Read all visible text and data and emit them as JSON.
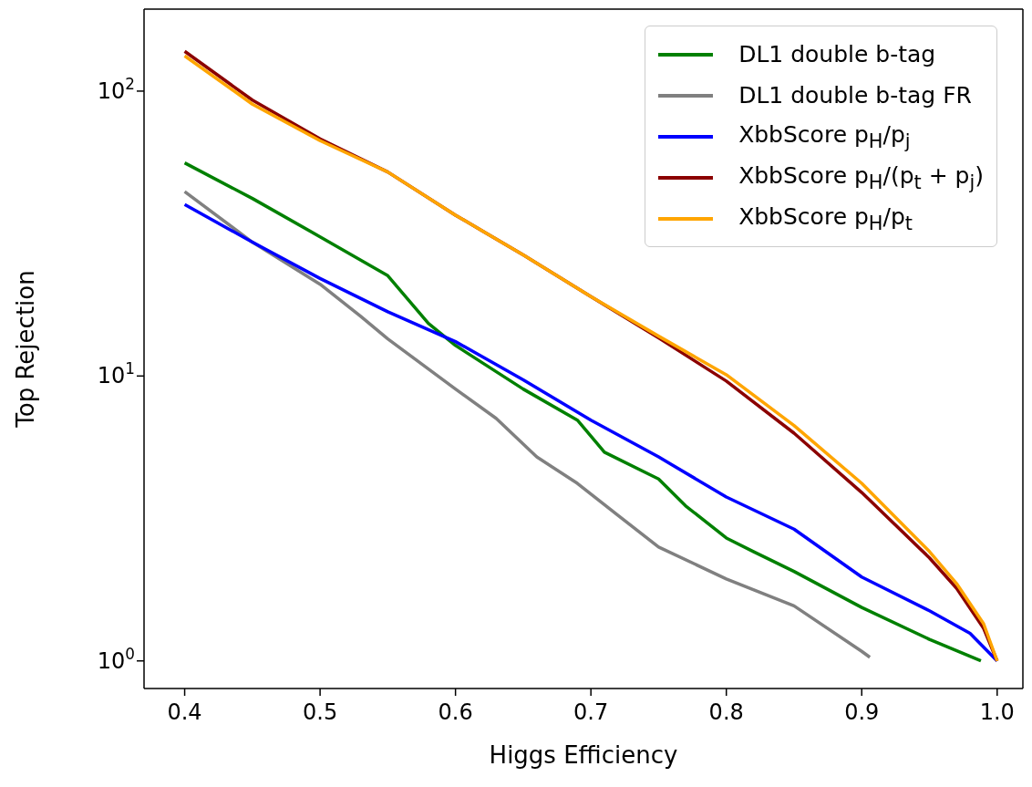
{
  "chart_data": {
    "type": "line",
    "xlabel": "Higgs Efficiency",
    "ylabel": "Top Rejection",
    "log": "y",
    "xlim": [
      0.37,
      1.019
    ],
    "xticks": [
      0.4,
      0.5,
      0.6,
      0.7,
      0.8,
      0.9,
      {
        "value": 1,
        "label": "1.0"
      }
    ],
    "ylim": [
      0.8,
      194
    ],
    "yticks": [
      {
        "value": 1,
        "label": "10$^{0}$"
      },
      {
        "value": 10,
        "label": "10$^{1}$"
      },
      {
        "value": 100,
        "label": "10$^{2}$"
      }
    ],
    "legend": "top right",
    "line_style": "solid",
    "marker": "none",
    "series": [
      {
        "name": "DL1 double b-tag",
        "color": "#008000",
        "x": [
          0.4,
          0.45,
          0.5,
          0.55,
          0.58,
          0.6,
          0.65,
          0.69,
          0.71,
          0.75,
          0.77,
          0.8,
          0.82,
          0.85,
          0.9,
          0.95,
          0.988
        ],
        "values": [
          56,
          42,
          30.8,
          22.5,
          15.3,
          12.8,
          9.0,
          7.0,
          5.4,
          4.35,
          3.5,
          2.7,
          2.42,
          2.06,
          1.54,
          1.19,
          1.0
        ]
      },
      {
        "name": "DL1 double b-tag FR",
        "color": "#808080",
        "x": [
          0.4,
          0.45,
          0.5,
          0.53,
          0.55,
          0.6,
          0.63,
          0.66,
          0.69,
          0.72,
          0.75,
          0.8,
          0.85,
          0.9,
          0.906
        ],
        "values": [
          44.4,
          29.5,
          21,
          16.2,
          13.5,
          9.0,
          7.1,
          5.2,
          4.2,
          3.24,
          2.51,
          1.94,
          1.56,
          1.08,
          1.03
        ]
      },
      {
        "name": "XbbScore p$_{H}$/p$_{j}$",
        "color": "#0000ff",
        "x": [
          0.4,
          0.45,
          0.5,
          0.55,
          0.6,
          0.65,
          0.7,
          0.75,
          0.8,
          0.85,
          0.9,
          0.95,
          0.98,
          1.0
        ],
        "values": [
          40,
          29.5,
          22,
          16.8,
          13.2,
          9.7,
          7.0,
          5.2,
          3.76,
          2.9,
          1.97,
          1.5,
          1.25,
          1.0
        ]
      },
      {
        "name": "XbbScore p$_{H}$/(p$_{t}$ + p$_{j}$)",
        "color": "#8b0000",
        "x": [
          0.4,
          0.45,
          0.5,
          0.55,
          0.6,
          0.65,
          0.7,
          0.75,
          0.8,
          0.85,
          0.9,
          0.95,
          0.97,
          0.99,
          1.0
        ],
        "values": [
          138,
          93,
          68,
          52,
          36.7,
          26.6,
          19,
          13.6,
          9.6,
          6.3,
          3.9,
          2.3,
          1.8,
          1.3,
          1.0
        ]
      },
      {
        "name": "XbbScore p$_{H}$/p$_{t}$",
        "color": "#ffa500",
        "x": [
          0.4,
          0.45,
          0.5,
          0.55,
          0.6,
          0.65,
          0.7,
          0.75,
          0.8,
          0.85,
          0.9,
          0.95,
          0.97,
          0.99,
          1.0
        ],
        "values": [
          133,
          90,
          67,
          52,
          36.7,
          26.6,
          19,
          13.8,
          10.1,
          6.7,
          4.2,
          2.42,
          1.87,
          1.35,
          1.0
        ]
      }
    ]
  }
}
